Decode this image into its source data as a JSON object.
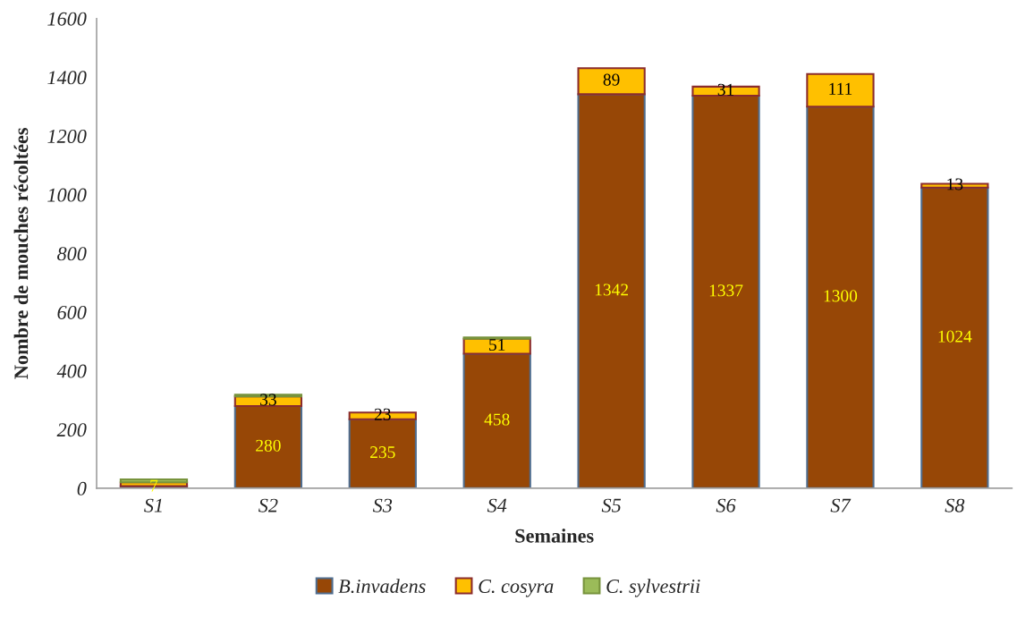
{
  "chart_data": {
    "type": "bar",
    "stacked": true,
    "xlabel": "Semaines",
    "ylabel": "Nombre de mouches récoltées",
    "categories": [
      "S1",
      "S2",
      "S3",
      "S4",
      "S5",
      "S6",
      "S7",
      "S8"
    ],
    "series": [
      {
        "name": "B.invadens",
        "color": "#974706",
        "values": [
          7,
          280,
          235,
          458,
          1342,
          1337,
          1300,
          1024
        ],
        "value_labels": [
          "7",
          "280",
          "235",
          "458",
          "1342",
          "1337",
          "1300",
          "1024"
        ]
      },
      {
        "name": "C. cosyra",
        "color": "#ffc000",
        "values": [
          13,
          33,
          23,
          51,
          89,
          31,
          111,
          13
        ],
        "value_labels": [
          null,
          "33",
          "23",
          "51",
          "89",
          "31",
          "111",
          "13"
        ]
      },
      {
        "name": "C. sylvestrii",
        "color": "#9bbb59",
        "values": [
          10,
          6,
          null,
          5,
          null,
          null,
          null,
          null
        ]
      }
    ],
    "ylim": [
      0,
      1600
    ],
    "yticks": [
      0,
      200,
      400,
      600,
      800,
      1000,
      1200,
      1400,
      1600
    ],
    "grid": false,
    "legend": "bottom"
  }
}
